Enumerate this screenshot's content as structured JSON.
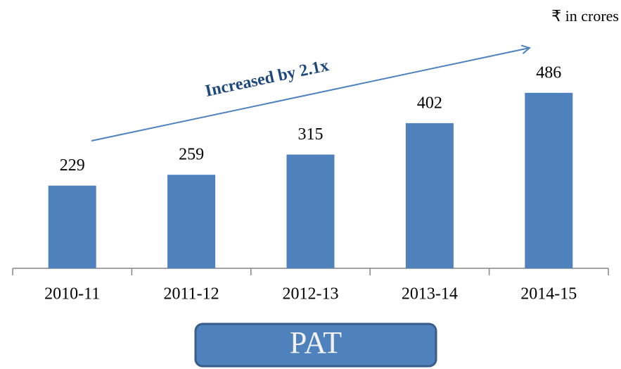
{
  "chart_data": {
    "type": "bar",
    "unit_note": "₹ in crores",
    "annotation": "Increased by 2.1x",
    "label": "PAT",
    "categories": [
      "2010-11",
      "2011-12",
      "2012-13",
      "2013-14",
      "2014-15"
    ],
    "values": [
      229,
      259,
      315,
      402,
      486
    ],
    "color": "#4f81bd",
    "ylim": [
      0,
      550
    ]
  }
}
